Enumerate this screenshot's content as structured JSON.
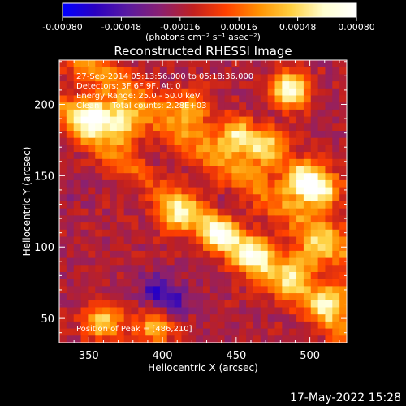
{
  "chart_data": {
    "type": "heatmap",
    "title": "Reconstructed RHESSI Image",
    "xlabel": "Heliocentric X (arcsec)",
    "ylabel": "Heliocentric Y (arcsec)",
    "xlim": [
      330,
      525
    ],
    "ylim": [
      33,
      231
    ],
    "x_ticks": [
      350,
      400,
      450,
      500
    ],
    "y_ticks": [
      50,
      100,
      150,
      200
    ],
    "x_tick_labels": [
      "350",
      "400",
      "450",
      "500"
    ],
    "y_tick_labels": [
      "50",
      "100",
      "150",
      "200"
    ],
    "colorbar": {
      "min": -0.0008,
      "max": 0.0008,
      "tick_labels": [
        "-0.00080",
        "-0.00048",
        "-0.00016",
        "0.00016",
        "0.00048",
        "0.00080"
      ],
      "unit_label": "(photons cm⁻² s⁻¹ asec⁻²)"
    },
    "annotations": [
      "27-Sep-2014 05:13:56.000 to 05:18:36.000",
      "Detectors: 3F 6F 9F, Att 0",
      "Energy Range: 25.0 - 50.0 keV",
      "Clean     Total counts: 2.28E+03"
    ],
    "peak_label": "Position of Peak = [486,210]",
    "peak": {
      "x": 486,
      "y": 210
    },
    "grid_resolution": [
      40,
      40
    ],
    "bright_features": [
      {
        "x": 352,
        "y": 192,
        "value": 0.00075
      },
      {
        "x": 372,
        "y": 186,
        "value": 0.0006
      },
      {
        "x": 420,
        "y": 198,
        "value": 0.00035
      },
      {
        "x": 450,
        "y": 178,
        "value": 0.0006
      },
      {
        "x": 470,
        "y": 170,
        "value": 0.00058
      },
      {
        "x": 486,
        "y": 210,
        "value": 0.0008
      },
      {
        "x": 495,
        "y": 148,
        "value": 0.0007
      },
      {
        "x": 508,
        "y": 140,
        "value": 0.00065
      },
      {
        "x": 410,
        "y": 122,
        "value": 0.00045
      },
      {
        "x": 438,
        "y": 110,
        "value": 0.00055
      },
      {
        "x": 462,
        "y": 95,
        "value": 0.0006
      },
      {
        "x": 490,
        "y": 82,
        "value": 0.0005
      },
      {
        "x": 515,
        "y": 62,
        "value": 0.0005
      },
      {
        "x": 360,
        "y": 48,
        "value": 0.00055
      },
      {
        "x": 395,
        "y": 44,
        "value": 0.0004
      },
      {
        "x": 505,
        "y": 100,
        "value": 0.0003
      }
    ],
    "dark_features": [
      {
        "x": 395,
        "y": 70,
        "value": -0.0006
      },
      {
        "x": 408,
        "y": 62,
        "value": -0.00055
      },
      {
        "x": 393,
        "y": 150,
        "value": -0.00035
      },
      {
        "x": 445,
        "y": 128,
        "value": -0.0003
      },
      {
        "x": 340,
        "y": 140,
        "value": -0.00025
      },
      {
        "x": 470,
        "y": 200,
        "value": -0.00025
      }
    ],
    "background_level": -0.00014,
    "ridge_bands": [
      {
        "direction": [
          1,
          -0.75
        ],
        "offset_x": 420,
        "offset_y": 175,
        "width": 9,
        "value": 0.00048
      },
      {
        "direction": [
          1,
          -0.8
        ],
        "offset_x": 450,
        "offset_y": 100,
        "width": 8,
        "value": 0.00042
      }
    ],
    "grid": false
  },
  "footer": {
    "timestamp": "17-May-2022 15:28"
  },
  "colors": {
    "background": "#000000",
    "text": "#ffffff",
    "colormap": [
      "#0000ff",
      "#2a00c0",
      "#5a1aa0",
      "#8a2070",
      "#c02020",
      "#ff4000",
      "#ff9000",
      "#ffd040",
      "#ffffd0",
      "#ffffff"
    ]
  }
}
